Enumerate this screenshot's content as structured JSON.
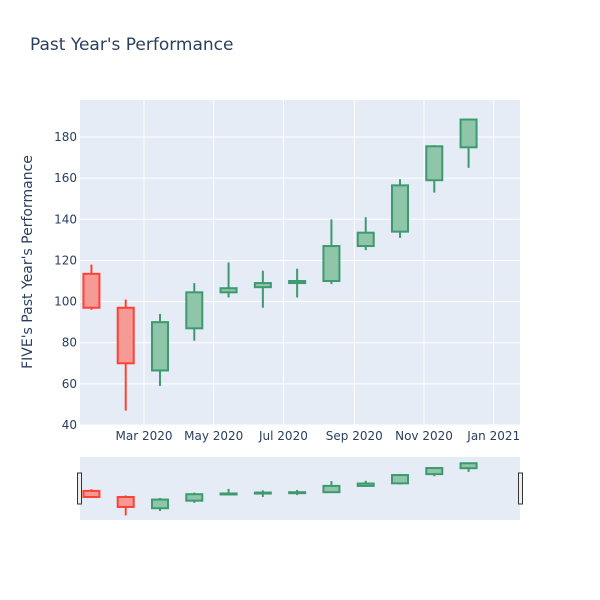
{
  "chart_data": {
    "type": "candlestick",
    "title": "Past Year's Performance",
    "ylabel": "FIVE's Past Year's Performance",
    "xlabel": "",
    "ylim": [
      40,
      198
    ],
    "yticks": [
      40,
      60,
      80,
      100,
      120,
      140,
      160,
      180
    ],
    "xlim": [
      "2020-01-05",
      "2021-01-24"
    ],
    "xticks": [
      {
        "date": "2020-03-01",
        "label": "Mar 2020"
      },
      {
        "date": "2020-05-01",
        "label": "May 2020"
      },
      {
        "date": "2020-07-01",
        "label": "Jul 2020"
      },
      {
        "date": "2020-09-01",
        "label": "Sep 2020"
      },
      {
        "date": "2020-11-01",
        "label": "Nov 2020"
      },
      {
        "date": "2021-01-01",
        "label": "Jan 2021"
      }
    ],
    "increasing_color": "#3d9970",
    "increasing_fill": "#8fc5a8",
    "decreasing_color": "#ff4136",
    "decreasing_fill": "#f59a95",
    "candles": [
      {
        "date": "2020-01-15",
        "open": 113.5,
        "high": 118,
        "low": 96,
        "close": 97
      },
      {
        "date": "2020-02-14",
        "open": 97,
        "high": 101,
        "low": 47,
        "close": 70
      },
      {
        "date": "2020-03-15",
        "open": 66.5,
        "high": 94,
        "low": 59,
        "close": 90
      },
      {
        "date": "2020-04-14",
        "open": 87,
        "high": 109,
        "low": 81,
        "close": 104.5
      },
      {
        "date": "2020-05-14",
        "open": 104.5,
        "high": 119,
        "low": 102,
        "close": 106.5
      },
      {
        "date": "2020-06-13",
        "open": 107,
        "high": 115,
        "low": 97,
        "close": 109
      },
      {
        "date": "2020-07-13",
        "open": 109,
        "high": 116,
        "low": 102,
        "close": 110
      },
      {
        "date": "2020-08-12",
        "open": 110,
        "high": 140,
        "low": 108.5,
        "close": 127
      },
      {
        "date": "2020-09-11",
        "open": 127,
        "high": 141,
        "low": 125,
        "close": 133.5
      },
      {
        "date": "2020-10-11",
        "open": 134,
        "high": 159.5,
        "low": 131,
        "close": 156.5
      },
      {
        "date": "2020-11-10",
        "open": 159,
        "high": 176,
        "low": 153,
        "close": 175.5
      },
      {
        "date": "2020-12-10",
        "open": 175,
        "high": 189,
        "low": 165,
        "close": 188.5
      }
    ]
  }
}
